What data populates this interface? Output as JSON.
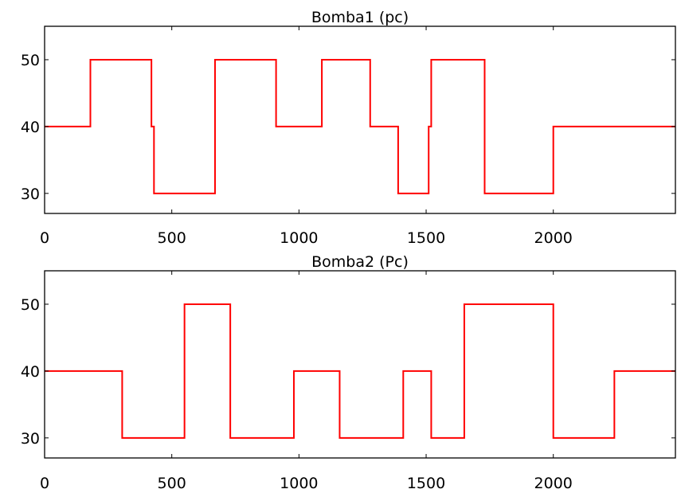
{
  "chart_data": [
    {
      "type": "line",
      "title": "Bomba1 (pc)",
      "xlabel": "",
      "ylabel": "",
      "xlim": [
        0,
        2480
      ],
      "ylim": [
        27,
        55
      ],
      "xticks": [
        0,
        500,
        1000,
        1500,
        2000
      ],
      "yticks": [
        30,
        40,
        50
      ],
      "grid": false,
      "color": "#ff0000",
      "series": [
        {
          "step": "post",
          "points": [
            [
              0,
              40
            ],
            [
              180,
              50
            ],
            [
              420,
              40
            ],
            [
              430,
              30
            ],
            [
              670,
              50
            ],
            [
              910,
              40
            ],
            [
              1090,
              50
            ],
            [
              1280,
              40
            ],
            [
              1390,
              30
            ],
            [
              1510,
              40
            ],
            [
              1520,
              50
            ],
            [
              1730,
              30
            ],
            [
              2000,
              40
            ],
            [
              2480,
              40
            ]
          ]
        }
      ]
    },
    {
      "type": "line",
      "title": "Bomba2 (Pc)",
      "xlabel": "",
      "ylabel": "",
      "xlim": [
        0,
        2480
      ],
      "ylim": [
        27,
        55
      ],
      "xticks": [
        0,
        500,
        1000,
        1500,
        2000
      ],
      "yticks": [
        30,
        40,
        50
      ],
      "grid": false,
      "color": "#ff0000",
      "series": [
        {
          "step": "post",
          "points": [
            [
              0,
              40
            ],
            [
              305,
              30
            ],
            [
              550,
              50
            ],
            [
              730,
              30
            ],
            [
              980,
              40
            ],
            [
              1160,
              30
            ],
            [
              1410,
              40
            ],
            [
              1520,
              30
            ],
            [
              1650,
              50
            ],
            [
              2000,
              30
            ],
            [
              2240,
              40
            ],
            [
              2480,
              40
            ]
          ]
        }
      ]
    }
  ]
}
